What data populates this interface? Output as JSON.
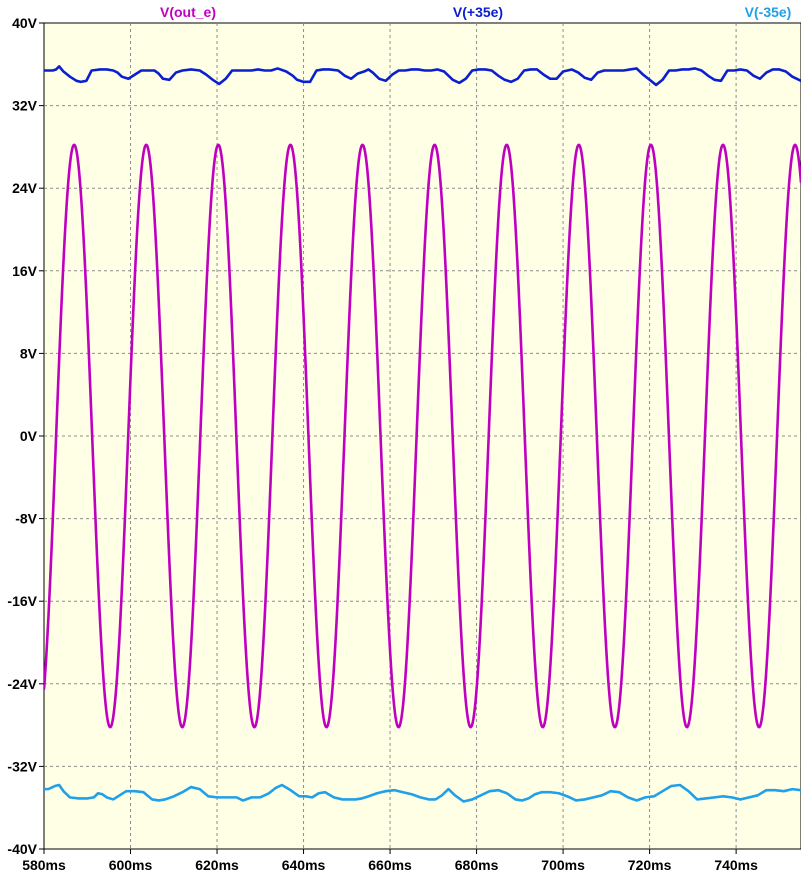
{
  "chart_data": {
    "type": "line",
    "title": "",
    "xlabel": "",
    "ylabel": "",
    "x_unit": "ms",
    "y_unit": "V",
    "xlim": [
      580,
      755
    ],
    "ylim": [
      -40,
      40
    ],
    "grid": true,
    "legend_position": "top",
    "x_ticks": [
      "580ms",
      "600ms",
      "620ms",
      "640ms",
      "660ms",
      "680ms",
      "700ms",
      "720ms",
      "740ms"
    ],
    "x_tick_values": [
      580,
      600,
      620,
      640,
      660,
      680,
      700,
      720,
      740
    ],
    "y_ticks": [
      "40V",
      "32V",
      "24V",
      "16V",
      "8V",
      "0V",
      "-8V",
      "-16V",
      "-24V",
      "-32V",
      "-40V"
    ],
    "y_tick_values": [
      40,
      32,
      24,
      16,
      8,
      0,
      -8,
      -16,
      -24,
      -32,
      -40
    ],
    "series": [
      {
        "name": "V(out_e)",
        "color": "#c000c0",
        "kind": "sine",
        "amplitude": 28.2,
        "offset": 0,
        "frequency_hz": 60,
        "phase_ref_ms": 582.8
      },
      {
        "name": "V(+35e)",
        "color": "#0a1fd0",
        "kind": "rail",
        "x": [
          580,
          581,
          582,
          582.8,
          583.5,
          584.5,
          586,
          587.5,
          588.5,
          589.8,
          591,
          593,
          594.5,
          596,
          597,
          598,
          599.5,
          601,
          602.5,
          604,
          605.5,
          606.5,
          607.5,
          609,
          610.5,
          612,
          614,
          616,
          617.5,
          619,
          620.5,
          622,
          623.5,
          625,
          626.5,
          628,
          629.5,
          631,
          632.5,
          634,
          636,
          637.5,
          638.5,
          640,
          641.5,
          643,
          644.5,
          646,
          648,
          649.5,
          651,
          652.5,
          654,
          655,
          656,
          657.5,
          659,
          660.5,
          662,
          663.5,
          665,
          666.5,
          668,
          669.5,
          671,
          672.5,
          673.5,
          674.5,
          676,
          677.5,
          679,
          680.5,
          682,
          683.5,
          685,
          686.5,
          688,
          689.5,
          691,
          692.5,
          694,
          695.5,
          697,
          698.5,
          700,
          701,
          702,
          703.5,
          705,
          706.5,
          708,
          709.5,
          711,
          712.5,
          714,
          715.5,
          717,
          718.5,
          720,
          721.5,
          723,
          724.5,
          726,
          727.5,
          729,
          730.5,
          732,
          733.5,
          735,
          736.5,
          738,
          739.5,
          741,
          742.5,
          744,
          745.5,
          747,
          748.5,
          750,
          751.5,
          753,
          755
        ],
        "values": [
          35.4,
          35.4,
          35.4,
          35.5,
          35.8,
          35.3,
          34.8,
          34.4,
          34.3,
          34.4,
          35.4,
          35.5,
          35.5,
          35.4,
          35.2,
          34.8,
          34.6,
          35.0,
          35.4,
          35.4,
          35.4,
          35.1,
          34.6,
          34.5,
          35.2,
          35.4,
          35.5,
          35.4,
          35.0,
          34.5,
          34.1,
          34.6,
          35.4,
          35.4,
          35.4,
          35.4,
          35.5,
          35.4,
          35.4,
          35.6,
          35.3,
          34.9,
          34.5,
          34.3,
          34.3,
          35.4,
          35.5,
          35.5,
          35.4,
          34.9,
          34.6,
          35.1,
          35.3,
          35.5,
          35.2,
          34.6,
          34.4,
          35.0,
          35.4,
          35.4,
          35.5,
          35.5,
          35.4,
          35.4,
          35.5,
          35.3,
          34.9,
          34.5,
          34.2,
          34.6,
          35.4,
          35.5,
          35.5,
          35.4,
          34.9,
          34.5,
          34.3,
          34.6,
          35.4,
          35.5,
          35.5,
          35.0,
          34.6,
          34.6,
          35.3,
          35.4,
          35.5,
          35.2,
          34.7,
          34.5,
          35.2,
          35.4,
          35.4,
          35.4,
          35.4,
          35.5,
          35.6,
          35.0,
          34.5,
          34.0,
          34.5,
          35.4,
          35.4,
          35.5,
          35.5,
          35.6,
          35.4,
          34.9,
          34.5,
          34.4,
          35.4,
          35.4,
          35.5,
          35.4,
          34.9,
          34.6,
          35.2,
          35.5,
          35.5,
          35.3,
          34.8,
          34.4
        ]
      },
      {
        "name": "V(-35e)",
        "color": "#20a0e8",
        "kind": "rail",
        "x": [
          580,
          581,
          582.5,
          583.5,
          584.5,
          586,
          588,
          590,
          591.5,
          592.5,
          593.5,
          594.5,
          596,
          597.5,
          599,
          601,
          603,
          605,
          606.5,
          608,
          610,
          612,
          614,
          616,
          618,
          620,
          621.5,
          623,
          624.5,
          626,
          628,
          630,
          632,
          633.5,
          635,
          637,
          639,
          640.5,
          642,
          643.5,
          645,
          647,
          649,
          650.5,
          652,
          653.5,
          655,
          657,
          659,
          661,
          663,
          665,
          667,
          669,
          670.5,
          672,
          673.5,
          675,
          677,
          679,
          681,
          683,
          685,
          687,
          689,
          690.5,
          692,
          693.5,
          695,
          697,
          699,
          701,
          703,
          705,
          707,
          709,
          711,
          713,
          715,
          717,
          719,
          721,
          723,
          725,
          727,
          729,
          731,
          733,
          735,
          737,
          739,
          741,
          743,
          745,
          747,
          749,
          751,
          753,
          755
        ],
        "values": [
          -34.2,
          -34.2,
          -33.9,
          -33.8,
          -34.4,
          -35.0,
          -35.1,
          -35.1,
          -35.0,
          -34.6,
          -34.7,
          -35.0,
          -35.2,
          -34.8,
          -34.4,
          -34.4,
          -34.5,
          -35.2,
          -35.3,
          -35.2,
          -34.9,
          -34.5,
          -34.0,
          -34.2,
          -34.9,
          -35.0,
          -35.0,
          -35.0,
          -35.0,
          -35.3,
          -35.0,
          -35.0,
          -34.6,
          -34.1,
          -33.8,
          -34.3,
          -34.9,
          -34.9,
          -35.0,
          -34.6,
          -34.5,
          -35.0,
          -35.2,
          -35.2,
          -35.2,
          -35.1,
          -34.9,
          -34.6,
          -34.4,
          -34.3,
          -34.5,
          -34.7,
          -35.0,
          -35.2,
          -35.2,
          -34.8,
          -34.2,
          -34.8,
          -35.4,
          -35.2,
          -34.8,
          -34.4,
          -34.3,
          -34.6,
          -35.2,
          -35.3,
          -35.1,
          -34.7,
          -34.5,
          -34.5,
          -34.6,
          -34.9,
          -35.3,
          -35.2,
          -35.0,
          -34.8,
          -34.4,
          -34.5,
          -35.0,
          -35.3,
          -35.0,
          -34.9,
          -34.4,
          -33.9,
          -33.8,
          -34.4,
          -35.2,
          -35.1,
          -35.0,
          -34.9,
          -35.0,
          -35.2,
          -35.0,
          -34.8,
          -34.3,
          -34.3,
          -34.4,
          -34.2,
          -34.3
        ]
      }
    ]
  }
}
